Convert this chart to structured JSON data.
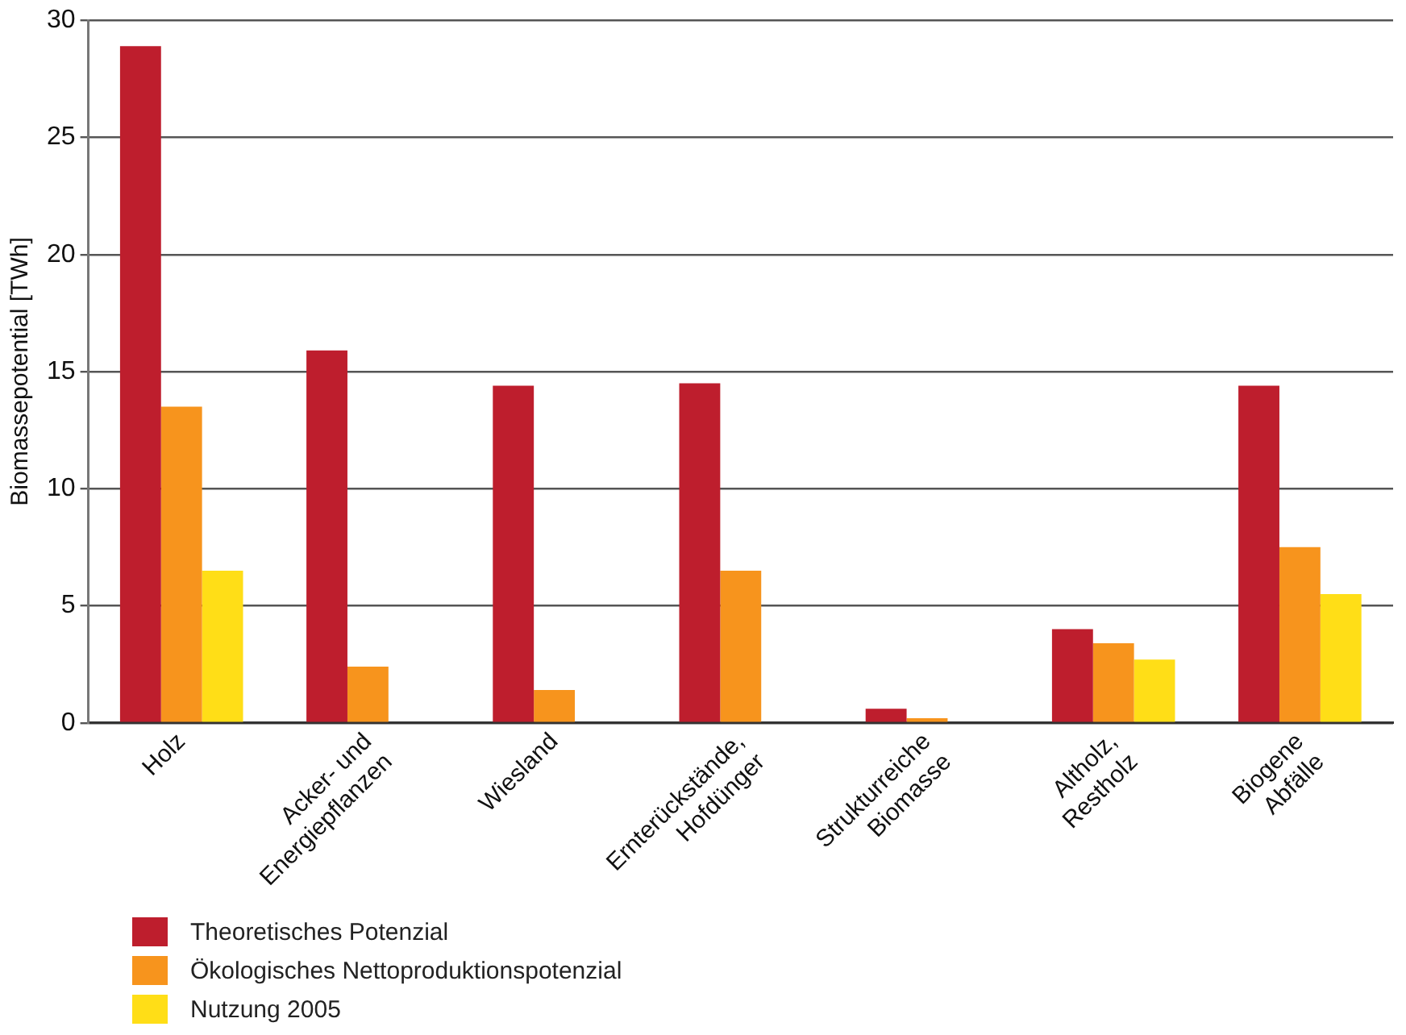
{
  "chart_data": {
    "type": "bar",
    "ylabel": "Biomassepotential [TWh]",
    "categories": [
      "Holz",
      "Acker- und\nEnergiepflanzen",
      "Wiesland",
      "Ernterückstände,\nHofdünger",
      "Strukturreiche\nBiomasse",
      "Altholz,\nRestholz",
      "Biogene\nAbfälle"
    ],
    "series": [
      {
        "name": "Theoretisches Potenzial",
        "color": "#be1e2d",
        "values": [
          28.9,
          15.9,
          14.4,
          14.5,
          0.6,
          4.0,
          14.4
        ]
      },
      {
        "name": "Ökologisches Nettoproduktionspotenzial",
        "color": "#f7941d",
        "values": [
          13.5,
          2.4,
          1.4,
          6.5,
          0.2,
          3.4,
          7.5
        ]
      },
      {
        "name": "Nutzung 2005",
        "color": "#ffde17",
        "values": [
          6.5,
          null,
          null,
          null,
          null,
          2.7,
          5.5
        ]
      }
    ],
    "ylim": [
      0,
      30
    ],
    "yticks": [
      0,
      5,
      10,
      15,
      20,
      25,
      30
    ],
    "grid": "y",
    "legend": "bottom left"
  }
}
